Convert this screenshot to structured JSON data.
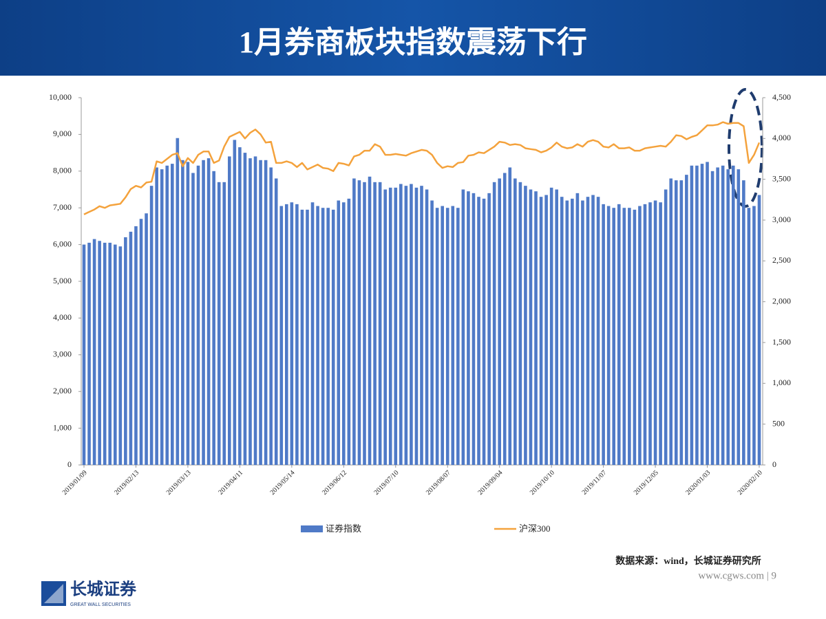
{
  "header": {
    "title": "1月券商板块指数震荡下行"
  },
  "chart_data": {
    "type": "bar-line",
    "categories": [
      "2019/01/09",
      null,
      null,
      null,
      null,
      null,
      null,
      null,
      null,
      null,
      "2019/02/13",
      null,
      null,
      null,
      null,
      null,
      null,
      null,
      null,
      null,
      "2019/03/13",
      null,
      null,
      null,
      null,
      null,
      null,
      null,
      null,
      null,
      "2019/04/11",
      null,
      null,
      null,
      null,
      null,
      null,
      null,
      null,
      null,
      "2019/05/14",
      null,
      null,
      null,
      null,
      null,
      null,
      null,
      null,
      null,
      "2019/06/12",
      null,
      null,
      null,
      null,
      null,
      null,
      null,
      null,
      null,
      "2019/07/10",
      null,
      null,
      null,
      null,
      null,
      null,
      null,
      null,
      null,
      "2019/08/07",
      null,
      null,
      null,
      null,
      null,
      null,
      null,
      null,
      null,
      "2019/09/04",
      null,
      null,
      null,
      null,
      null,
      null,
      null,
      null,
      null,
      "2019/10/10",
      null,
      null,
      null,
      null,
      null,
      null,
      null,
      null,
      null,
      "2019/11/07",
      null,
      null,
      null,
      null,
      null,
      null,
      null,
      null,
      null,
      "2019/12/05",
      null,
      null,
      null,
      null,
      null,
      null,
      null,
      null,
      null,
      "2020/01/03",
      null,
      null,
      null,
      null,
      null,
      null,
      null,
      null,
      null,
      "2020/02/10"
    ],
    "series": [
      {
        "name": "证券指数",
        "color": "#4f7ac7",
        "values": [
          6000,
          6050,
          6150,
          6100,
          6050,
          6050,
          6000,
          5950,
          6200,
          6350,
          6500,
          6700,
          6850,
          7600,
          8100,
          8050,
          8150,
          8200,
          8900,
          8300,
          8250,
          7950,
          8150,
          8300,
          8350,
          8000,
          7700,
          7700,
          8400,
          8850,
          8650,
          8500,
          8350,
          8400,
          8300,
          8300,
          8100,
          7800,
          7050,
          7100,
          7150,
          7100,
          6950,
          6950,
          7150,
          7050,
          7000,
          7000,
          6950,
          7200,
          7150,
          7250,
          7800,
          7750,
          7700,
          7850,
          7700,
          7700,
          7500,
          7550,
          7550,
          7650,
          7600,
          7650,
          7550,
          7600,
          7500,
          7200,
          7000,
          7050,
          7000,
          7050,
          7000,
          7500,
          7450,
          7400,
          7300,
          7250,
          7400,
          7700,
          7800,
          7950,
          8100,
          7800,
          7700,
          7600,
          7500,
          7450,
          7300,
          7350,
          7550,
          7500,
          7300,
          7200,
          7250,
          7400,
          7200,
          7300,
          7350,
          7300,
          7100,
          7050,
          7000,
          7100,
          7000,
          7000,
          6950,
          7050,
          7100,
          7150,
          7200,
          7150,
          7500,
          7800,
          7750,
          7750,
          7900,
          8150,
          8150,
          8200,
          8250,
          8000,
          8100,
          8150,
          8050,
          8150,
          8050,
          7750,
          7000,
          7050,
          7350
        ]
      },
      {
        "name": "沪深300",
        "color": "#f4a23c",
        "axis": "y2",
        "values": [
          3070,
          3100,
          3130,
          3170,
          3150,
          3180,
          3190,
          3200,
          3280,
          3380,
          3420,
          3400,
          3460,
          3470,
          3720,
          3700,
          3750,
          3800,
          3820,
          3660,
          3760,
          3700,
          3800,
          3840,
          3840,
          3700,
          3730,
          3900,
          4020,
          4050,
          4080,
          4000,
          4070,
          4110,
          4050,
          3950,
          3960,
          3700,
          3700,
          3720,
          3700,
          3650,
          3700,
          3620,
          3650,
          3680,
          3640,
          3630,
          3600,
          3700,
          3690,
          3670,
          3780,
          3800,
          3850,
          3850,
          3930,
          3900,
          3800,
          3800,
          3810,
          3800,
          3790,
          3820,
          3840,
          3860,
          3850,
          3800,
          3700,
          3640,
          3660,
          3650,
          3700,
          3710,
          3790,
          3800,
          3830,
          3820,
          3860,
          3900,
          3960,
          3950,
          3920,
          3930,
          3920,
          3880,
          3870,
          3860,
          3830,
          3850,
          3890,
          3950,
          3900,
          3880,
          3890,
          3930,
          3900,
          3960,
          3980,
          3960,
          3900,
          3890,
          3930,
          3880,
          3880,
          3890,
          3850,
          3850,
          3880,
          3890,
          3900,
          3910,
          3900,
          3960,
          4040,
          4030,
          3990,
          4020,
          4040,
          4100,
          4160,
          4160,
          4170,
          4200,
          4180,
          4190,
          4190,
          4150,
          3700,
          3800,
          3950
        ]
      }
    ],
    "ylim": [
      0,
      10000
    ],
    "yticks": [
      0,
      {
        "value": 1000,
        "label": "1,000"
      },
      {
        "value": 2000,
        "label": "2,000"
      },
      {
        "value": 3000,
        "label": "3,000"
      },
      {
        "value": 4000,
        "label": "4,000"
      },
      {
        "value": 5000,
        "label": "5,000"
      },
      {
        "value": 6000,
        "label": "6,000"
      },
      {
        "value": 7000,
        "label": "7,000"
      },
      {
        "value": 8000,
        "label": "8,000"
      },
      {
        "value": 9000,
        "label": "9,000"
      },
      {
        "value": 10000,
        "label": "10,000"
      }
    ],
    "y2lim": [
      0,
      4500
    ],
    "y2ticks": [
      0,
      500,
      {
        "value": 1000,
        "label": "1,000"
      },
      {
        "value": 1500,
        "label": "1,500"
      },
      {
        "value": 2000,
        "label": "2,000"
      },
      {
        "value": 2500,
        "label": "2,500"
      },
      {
        "value": 3000,
        "label": "3,000"
      },
      {
        "value": 3500,
        "label": "3,500"
      },
      {
        "value": 4000,
        "label": "4,000"
      },
      {
        "value": 4500,
        "label": "4,500"
      }
    ],
    "grid": false
  },
  "footer": {
    "source": "数据来源：wind，长城证券研究所",
    "site": "www.cgws.com | 9",
    "logo_cn": "长城证券",
    "logo_en": "GREAT WALL SECURITIES"
  }
}
